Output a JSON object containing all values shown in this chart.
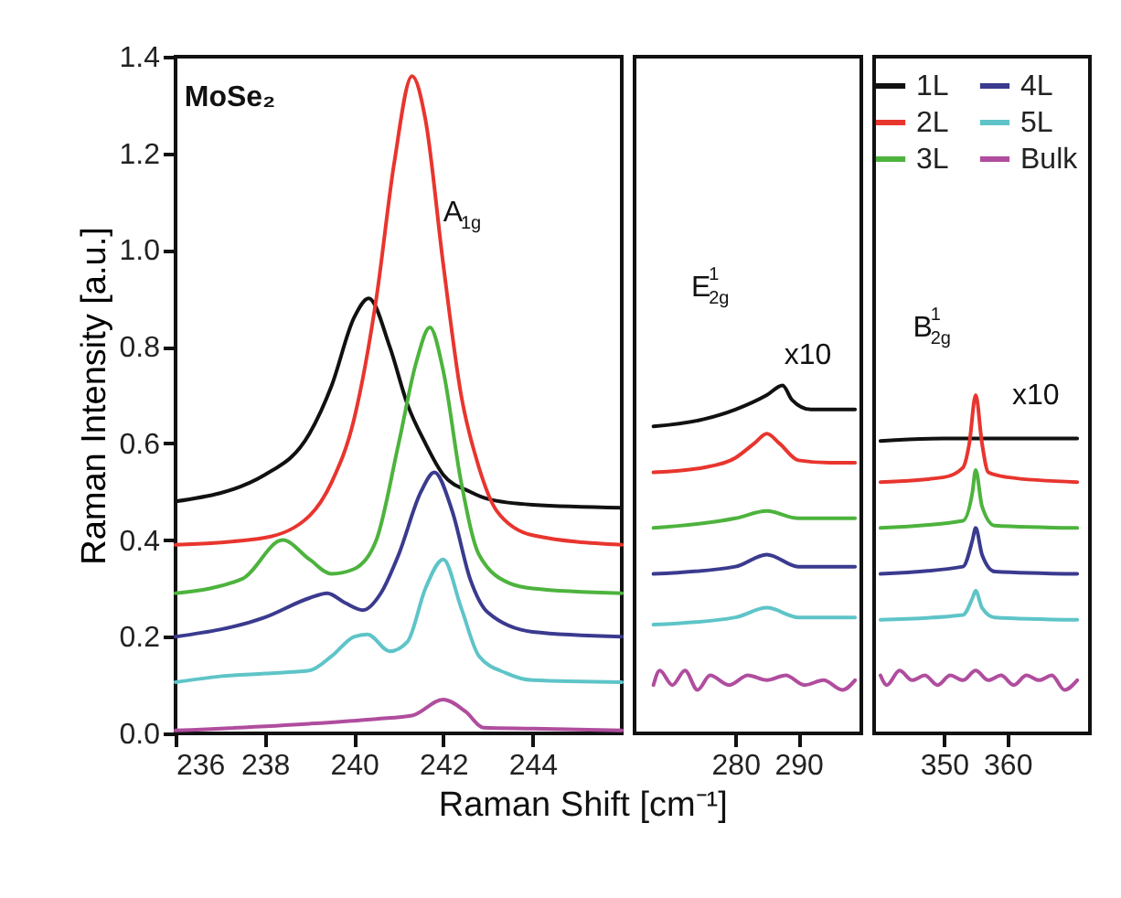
{
  "chart_data": [
    {
      "type": "line",
      "ylabel": "Raman Intensity [a.u.]",
      "xlim": [
        236,
        246
      ],
      "ylim": [
        0,
        1.4
      ],
      "xticks": [
        236,
        238,
        240,
        242,
        244
      ],
      "yticks": [
        {
          "value": 0,
          "label": "0.0"
        },
        0.2,
        0.4,
        0.6,
        0.8,
        {
          "value": 1,
          "label": "1.0"
        },
        1.2,
        1.4
      ],
      "annotations": [
        "MoSe₂",
        "A$_{1g}$"
      ],
      "series": [
        {
          "color": "#111111",
          "x": [
            236,
            238,
            239,
            239.5,
            240,
            240.33,
            240.8,
            241.2,
            241.6,
            242,
            242.6,
            243,
            244,
            246
          ],
          "values": [
            0.48,
            0.535,
            0.62,
            0.72,
            0.86,
            0.9,
            0.8,
            0.68,
            0.6,
            0.535,
            0.5,
            0.485,
            0.473,
            0.467
          ]
        },
        {
          "color": "#e8352e",
          "x": [
            236,
            238,
            239,
            239.5,
            240,
            240.5,
            240.9,
            241.3,
            241.6,
            242,
            242.4,
            242.8,
            243.2,
            244,
            246
          ],
          "values": [
            0.39,
            0.405,
            0.45,
            0.52,
            0.65,
            0.9,
            1.18,
            1.36,
            1.27,
            0.97,
            0.7,
            0.55,
            0.46,
            0.41,
            0.39
          ]
        },
        {
          "color": "#4db33d",
          "x": [
            236,
            237.5,
            238.4,
            239,
            239.5,
            240,
            240.5,
            241,
            241.4,
            241.7,
            242,
            242.4,
            242.8,
            243.5,
            244,
            246
          ],
          "values": [
            0.29,
            0.32,
            0.4,
            0.36,
            0.33,
            0.34,
            0.4,
            0.6,
            0.77,
            0.84,
            0.75,
            0.52,
            0.37,
            0.31,
            0.3,
            0.29
          ]
        },
        {
          "color": "#3a3a8f",
          "x": [
            236,
            238,
            239,
            239.4,
            239.8,
            240.2,
            240.6,
            241,
            241.5,
            241.8,
            242.2,
            242.6,
            243,
            244,
            246
          ],
          "values": [
            0.2,
            0.24,
            0.28,
            0.29,
            0.27,
            0.255,
            0.29,
            0.37,
            0.5,
            0.54,
            0.46,
            0.32,
            0.25,
            0.21,
            0.2
          ]
        },
        {
          "color": "#5ec4c8",
          "x": [
            236,
            237,
            238,
            239,
            239.5,
            240,
            240.3,
            240.8,
            241.2,
            241.6,
            242,
            242.4,
            242.8,
            243.4,
            244,
            246
          ],
          "values": [
            0.106,
            0.118,
            0.124,
            0.13,
            0.16,
            0.2,
            0.205,
            0.17,
            0.19,
            0.3,
            0.36,
            0.26,
            0.16,
            0.125,
            0.11,
            0.106
          ]
        },
        {
          "color": "#b04d9e",
          "x": [
            236,
            239,
            240.5,
            241.3,
            242,
            242.5,
            242.9,
            244,
            246
          ],
          "values": [
            0.006,
            0.02,
            0.03,
            0.037,
            0.07,
            0.045,
            0.012,
            0.01,
            0.006
          ]
        }
      ]
    },
    {
      "type": "line",
      "xlabel": "Raman Shift [cm⁻¹]",
      "xlim": [
        264,
        300
      ],
      "ylim": [
        0,
        1.4
      ],
      "xticks": [
        280,
        290
      ],
      "tick_labels": "x",
      "annotations": [
        "E$^{1}$$_{2g}$",
        "x10"
      ],
      "series": [
        {
          "color": "#111111",
          "x": [
            267,
            275,
            280,
            285,
            287.5,
            289,
            292,
            296,
            299
          ],
          "values": [
            0.635,
            0.65,
            0.67,
            0.7,
            0.72,
            0.69,
            0.67,
            0.67,
            0.67
          ]
        },
        {
          "color": "#e8352e",
          "x": [
            267,
            275,
            280,
            283,
            285,
            287,
            290,
            295,
            299
          ],
          "values": [
            0.54,
            0.55,
            0.57,
            0.6,
            0.62,
            0.6,
            0.565,
            0.56,
            0.56
          ]
        },
        {
          "color": "#4db33d",
          "x": [
            267,
            280,
            285,
            290,
            299
          ],
          "values": [
            0.425,
            0.445,
            0.46,
            0.445,
            0.445
          ]
        },
        {
          "color": "#3a3a8f",
          "x": [
            267,
            280,
            285,
            290,
            299
          ],
          "values": [
            0.33,
            0.345,
            0.37,
            0.345,
            0.345
          ]
        },
        {
          "color": "#5ec4c8",
          "x": [
            267,
            280,
            285,
            290,
            299
          ],
          "values": [
            0.225,
            0.24,
            0.26,
            0.24,
            0.24
          ]
        },
        {
          "color": "#b04d9e",
          "x": [
            267,
            268,
            270,
            272,
            274,
            276,
            279,
            282,
            285,
            288,
            291,
            294,
            297,
            299
          ],
          "values": [
            0.1,
            0.13,
            0.1,
            0.13,
            0.09,
            0.12,
            0.1,
            0.12,
            0.11,
            0.12,
            0.1,
            0.11,
            0.09,
            0.11
          ]
        }
      ]
    },
    {
      "type": "line",
      "xlim": [
        339,
        373
      ],
      "ylim": [
        0,
        1.4
      ],
      "xticks": [
        350,
        360
      ],
      "tick_labels": "x",
      "legend": "top right",
      "annotations": [
        "B$^{1}$$_{2g}$",
        "x10"
      ],
      "series": [
        {
          "name": "1L",
          "color": "#111111",
          "x": [
            340,
            350,
            360,
            371
          ],
          "values": [
            0.605,
            0.61,
            0.61,
            0.61
          ]
        },
        {
          "name": "2L",
          "color": "#e8352e",
          "x": [
            340,
            350,
            353,
            354,
            355,
            356,
            357,
            360,
            371
          ],
          "values": [
            0.52,
            0.53,
            0.55,
            0.6,
            0.7,
            0.6,
            0.54,
            0.53,
            0.52
          ]
        },
        {
          "name": "3L",
          "color": "#4db33d",
          "x": [
            340,
            353,
            354.5,
            355,
            356,
            358,
            371
          ],
          "values": [
            0.425,
            0.44,
            0.5,
            0.545,
            0.47,
            0.43,
            0.425
          ]
        },
        {
          "name": "4L",
          "color": "#3a3a8f",
          "x": [
            340,
            353,
            354.5,
            355,
            356,
            358,
            371
          ],
          "values": [
            0.33,
            0.345,
            0.4,
            0.425,
            0.37,
            0.335,
            0.33
          ]
        },
        {
          "name": "5L",
          "color": "#5ec4c8",
          "x": [
            340,
            353,
            354.5,
            355,
            356,
            358,
            371
          ],
          "values": [
            0.235,
            0.245,
            0.28,
            0.295,
            0.26,
            0.24,
            0.235
          ]
        },
        {
          "name": "Bulk",
          "color": "#b04d9e",
          "x": [
            340,
            341,
            343,
            345,
            347,
            349,
            351,
            353,
            355,
            357,
            359,
            361,
            363,
            365,
            367,
            369,
            371
          ],
          "values": [
            0.12,
            0.1,
            0.13,
            0.11,
            0.12,
            0.1,
            0.12,
            0.11,
            0.13,
            0.11,
            0.12,
            0.1,
            0.12,
            0.11,
            0.12,
            0.09,
            0.11
          ]
        }
      ]
    }
  ]
}
